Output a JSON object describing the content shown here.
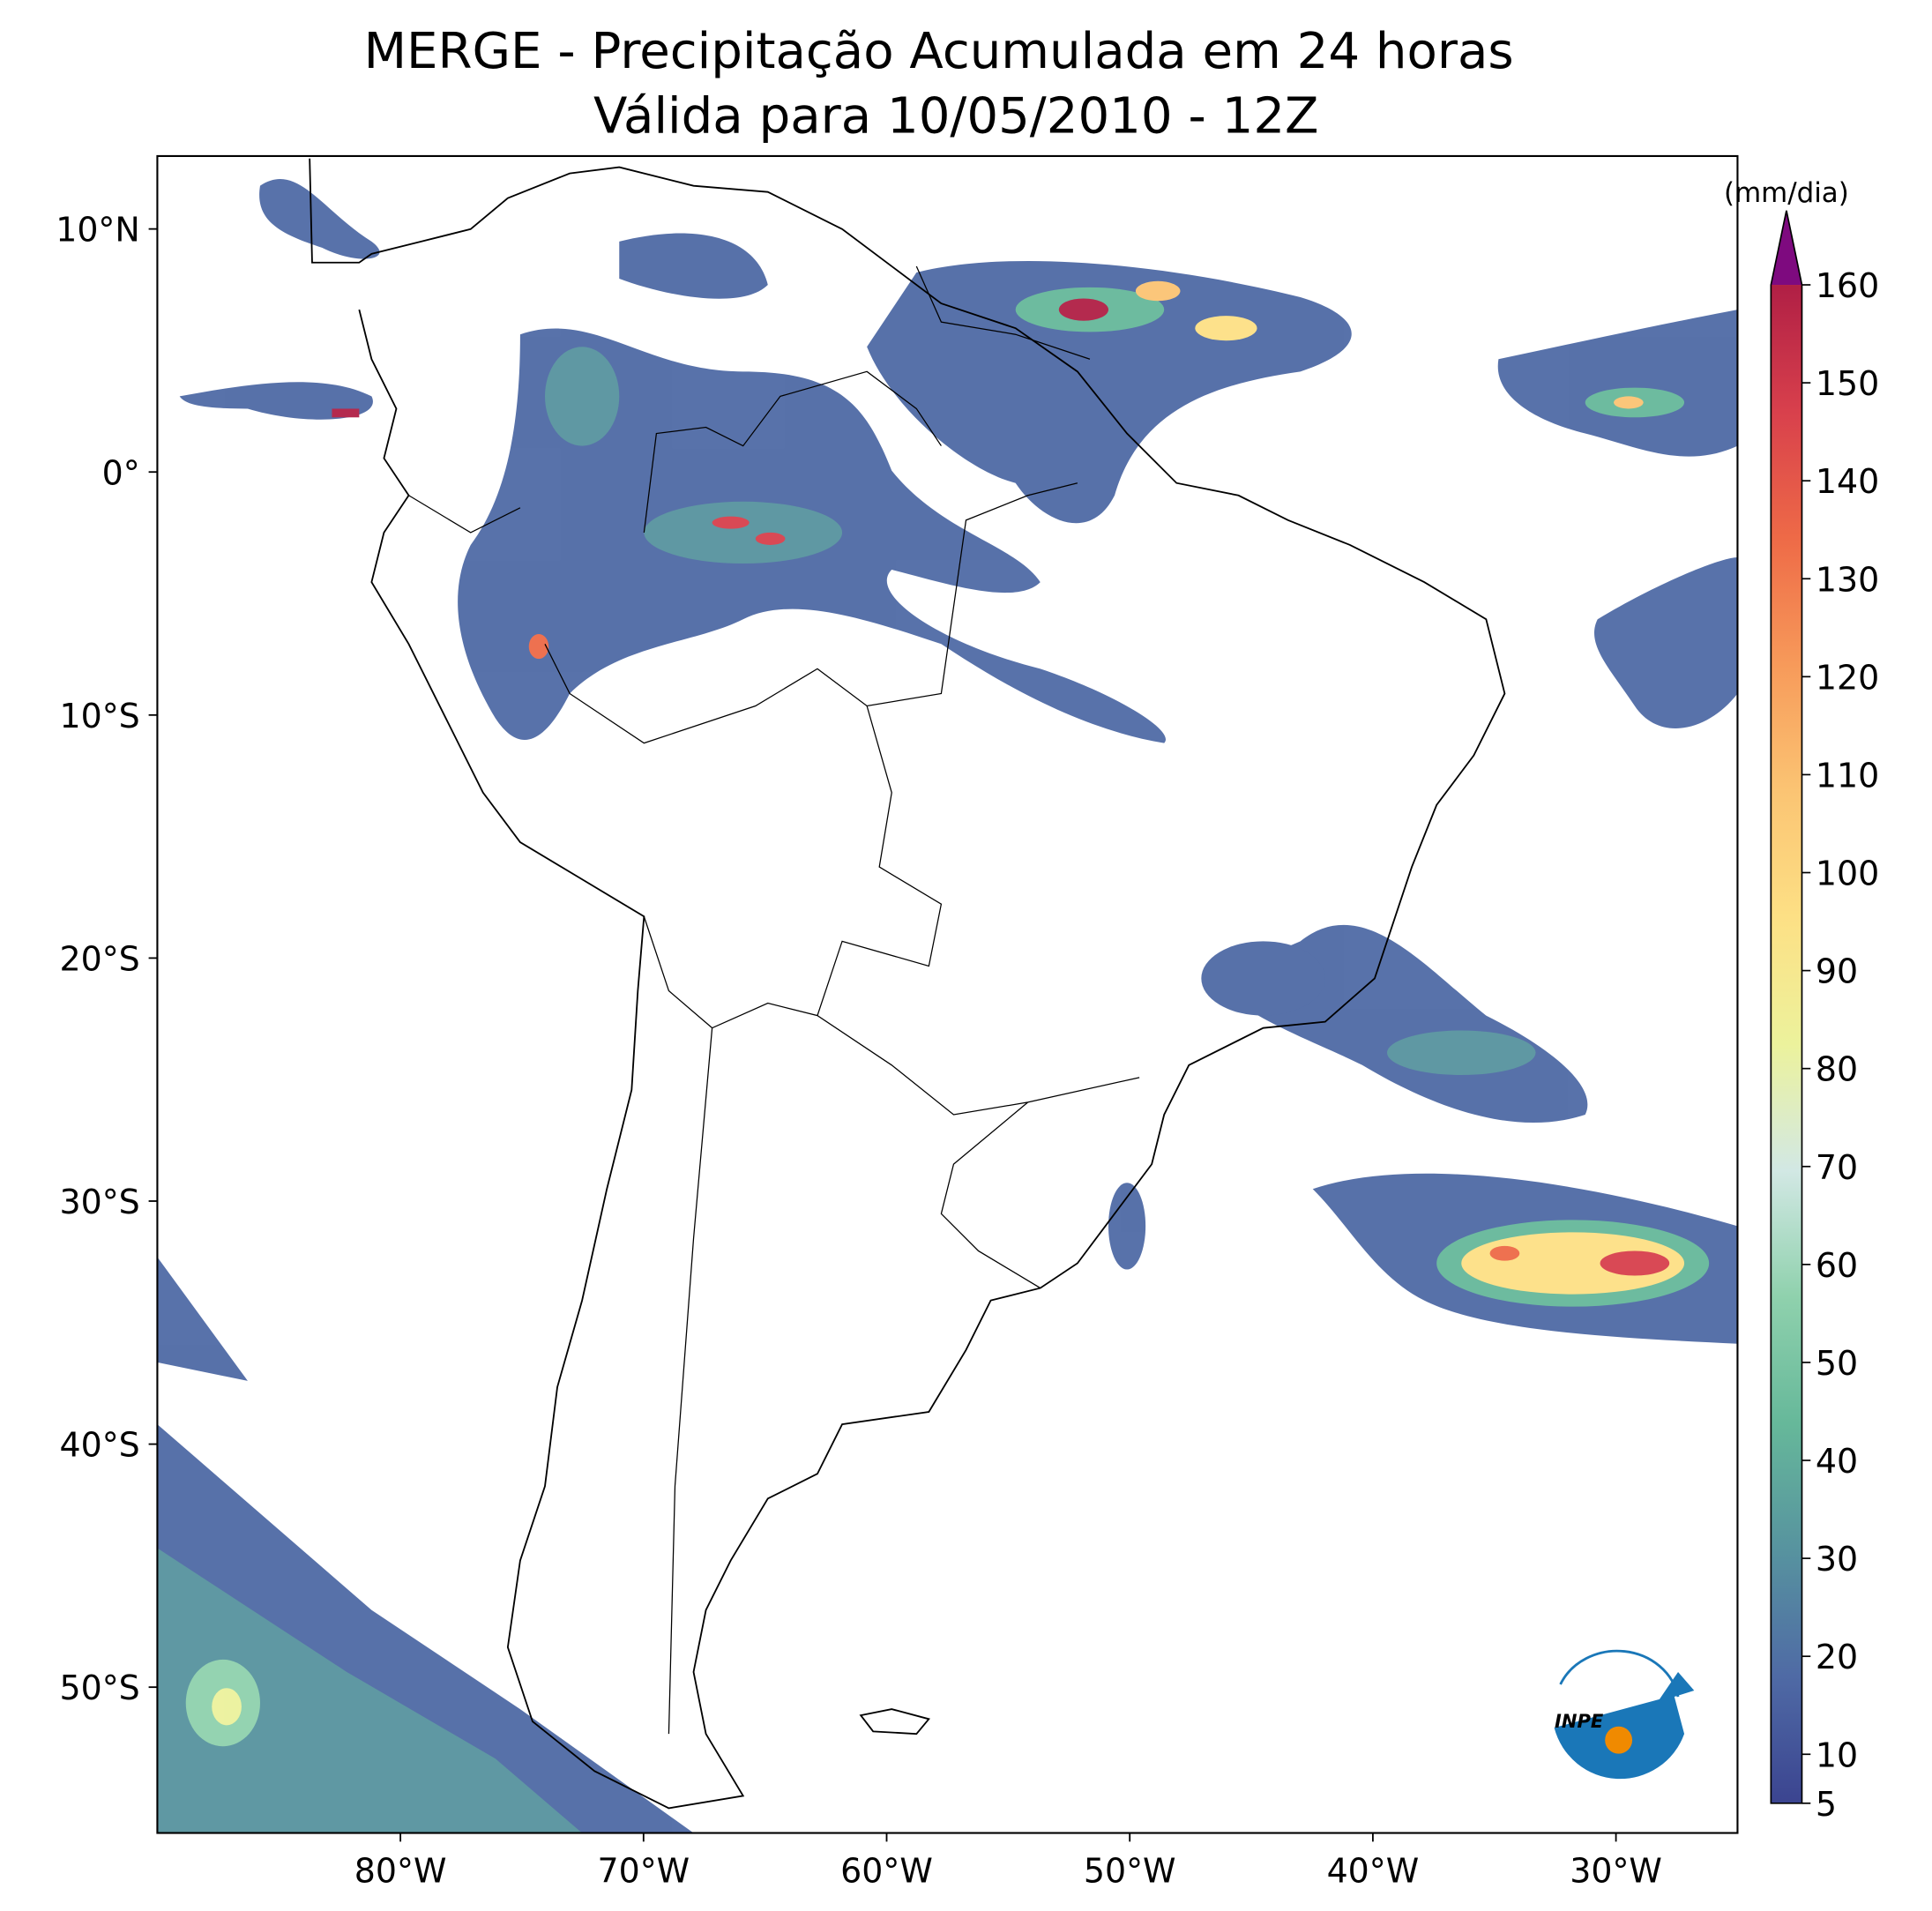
{
  "chart_data": {
    "type": "map",
    "title": [
      "MERGE - Precipitação Acumulada em 24 horas",
      "Válida para 10/05/2010 - 12Z"
    ],
    "xlim": [
      -90,
      -25
    ],
    "ylim": [
      -56,
      13
    ],
    "xticks": [
      {
        "value": -80,
        "label": "80°W"
      },
      {
        "value": -70,
        "label": "70°W"
      },
      {
        "value": -60,
        "label": "60°W"
      },
      {
        "value": -50,
        "label": "50°W"
      },
      {
        "value": -40,
        "label": "40°W"
      },
      {
        "value": -30,
        "label": "30°W"
      }
    ],
    "yticks": [
      {
        "value": 10,
        "label": "10°N"
      },
      {
        "value": 0,
        "label": "0°"
      },
      {
        "value": -10,
        "label": "10°S"
      },
      {
        "value": -20,
        "label": "20°S"
      },
      {
        "value": -30,
        "label": "30°S"
      },
      {
        "value": -40,
        "label": "40°S"
      },
      {
        "value": -50,
        "label": "50°S"
      }
    ],
    "colorbar": {
      "label": "(mm/dia)",
      "lim": [
        5,
        160
      ],
      "ticks": [
        5,
        10,
        20,
        30,
        40,
        50,
        60,
        70,
        80,
        90,
        100,
        110,
        120,
        130,
        140,
        150,
        160
      ],
      "colors": [
        "#3b4490",
        "#4f6aa5",
        "#57939f",
        "#66b89a",
        "#8fd1ad",
        "#d2e8e4",
        "#ecf29c",
        "#fde085",
        "#fbc473",
        "#f79a5a",
        "#ee6a47",
        "#d8404c",
        "#b01f45"
      ],
      "extend_color": "#7e0a7f"
    },
    "logo": "INPE"
  }
}
